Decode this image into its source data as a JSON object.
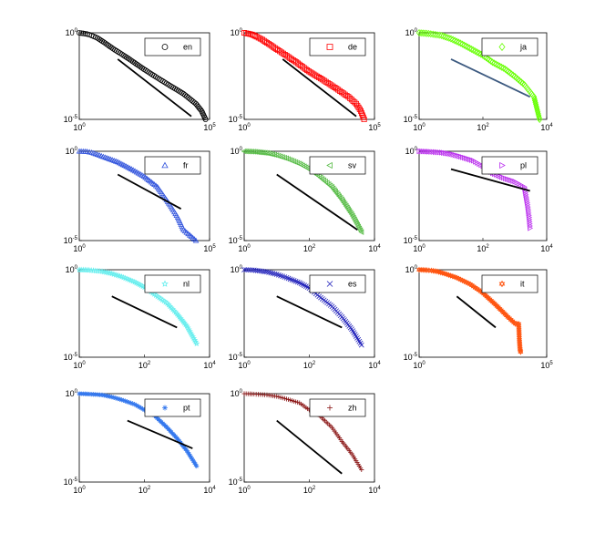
{
  "chart_data": [
    {
      "type": "scatter",
      "legend": "en",
      "marker": "circle",
      "color": "#000000",
      "xscale": "log",
      "yscale": "log",
      "xlim": [
        1,
        100000
      ],
      "ylim": [
        1e-05,
        1
      ],
      "xticks": [
        {
          "b": "10",
          "e": "0"
        },
        {
          "b": "10",
          "e": "5"
        }
      ],
      "yticks": [
        {
          "b": "10",
          "e": "0"
        },
        {
          "b": "10",
          "e": "-5"
        }
      ],
      "series": [
        {
          "x": [
            1,
            2,
            3,
            5,
            10,
            20,
            50,
            100,
            300,
            1000,
            3000,
            10000,
            30000,
            50000,
            70000
          ],
          "y": [
            1,
            0.85,
            0.7,
            0.5,
            0.25,
            0.12,
            0.05,
            0.025,
            0.008,
            0.0025,
            0.0009,
            0.0003,
            8e-05,
            3e-05,
            1e-05
          ]
        }
      ],
      "ref_line": {
        "x": [
          30,
          20000
        ],
        "y": [
          0.03,
          1.5e-05
        ],
        "color": "#000000"
      }
    },
    {
      "type": "scatter",
      "legend": "de",
      "marker": "square",
      "color": "#ff0000",
      "xscale": "log",
      "yscale": "log",
      "xlim": [
        1,
        100000
      ],
      "ylim": [
        1e-05,
        1
      ],
      "xticks": [
        {
          "b": "10",
          "e": "0"
        },
        {
          "b": "10",
          "e": "5"
        }
      ],
      "yticks": [
        {
          "b": "10",
          "e": "0"
        },
        {
          "b": "10",
          "e": "-5"
        }
      ],
      "series": [
        {
          "x": [
            1,
            2,
            3,
            5,
            10,
            20,
            50,
            100,
            300,
            1000,
            3000,
            10000,
            20000,
            30000,
            40000
          ],
          "y": [
            1,
            0.8,
            0.6,
            0.4,
            0.2,
            0.1,
            0.04,
            0.02,
            0.006,
            0.002,
            0.0007,
            0.0002,
            8e-05,
            3e-05,
            1e-05
          ]
        }
      ],
      "ref_line": {
        "x": [
          30,
          20000
        ],
        "y": [
          0.03,
          1.5e-05
        ],
        "color": "#000000"
      }
    },
    {
      "type": "scatter",
      "legend": "ja",
      "marker": "diamond",
      "color": "#66ff00",
      "xscale": "log",
      "yscale": "log",
      "xlim": [
        1,
        10000
      ],
      "ylim": [
        1e-05,
        1
      ],
      "xticks": [
        {
          "b": "10",
          "e": "0"
        },
        {
          "b": "10",
          "e": "2"
        },
        {
          "b": "10",
          "e": "4"
        }
      ],
      "yticks": [
        {
          "b": "10",
          "e": "0"
        },
        {
          "b": "10",
          "e": "-5"
        }
      ],
      "series": [
        {
          "x": [
            1,
            2,
            5,
            10,
            20,
            50,
            100,
            200,
            500,
            1000,
            2000,
            4000,
            6000
          ],
          "y": [
            1,
            0.9,
            0.7,
            0.45,
            0.25,
            0.1,
            0.05,
            0.02,
            0.008,
            0.003,
            0.001,
            0.0002,
            1e-05
          ]
        }
      ],
      "ref_line": {
        "x": [
          10,
          3000
        ],
        "y": [
          0.03,
          0.0002
        ],
        "color": "#3d5a80"
      }
    },
    {
      "type": "scatter",
      "legend": "fr",
      "marker": "triangle-up",
      "color": "#3355dd",
      "xscale": "log",
      "yscale": "log",
      "xlim": [
        1,
        100000
      ],
      "ylim": [
        1e-05,
        1
      ],
      "xticks": [
        {
          "b": "10",
          "e": "0"
        },
        {
          "b": "10",
          "e": "5"
        }
      ],
      "yticks": [
        {
          "b": "10",
          "e": "0"
        },
        {
          "b": "10",
          "e": "-5"
        }
      ],
      "series": [
        {
          "x": [
            1,
            2,
            3,
            5,
            10,
            30,
            100,
            300,
            1000,
            3000,
            6000,
            10000,
            30000
          ],
          "y": [
            1,
            0.95,
            0.85,
            0.65,
            0.45,
            0.25,
            0.1,
            0.04,
            0.01,
            0.001,
            0.0002,
            4e-05,
            1e-05
          ]
        }
      ],
      "ref_line": {
        "x": [
          30,
          8000
        ],
        "y": [
          0.05,
          0.0006
        ],
        "color": "#000000"
      }
    },
    {
      "type": "scatter",
      "legend": "sv",
      "marker": "triangle-left",
      "color": "#55bb44",
      "xscale": "log",
      "yscale": "log",
      "xlim": [
        1,
        10000
      ],
      "ylim": [
        1e-05,
        1
      ],
      "xticks": [
        {
          "b": "10",
          "e": "0"
        },
        {
          "b": "10",
          "e": "2"
        },
        {
          "b": "10",
          "e": "4"
        }
      ],
      "yticks": [
        {
          "b": "10",
          "e": "0"
        },
        {
          "b": "10",
          "e": "-5"
        }
      ],
      "series": [
        {
          "x": [
            1,
            2,
            5,
            10,
            20,
            50,
            100,
            200,
            500,
            1000,
            2000,
            4000
          ],
          "y": [
            1,
            0.95,
            0.8,
            0.6,
            0.4,
            0.2,
            0.1,
            0.04,
            0.01,
            0.002,
            0.0003,
            3e-05
          ]
        }
      ],
      "ref_line": {
        "x": [
          10,
          3000
        ],
        "y": [
          0.05,
          4e-05
        ],
        "color": "#000000"
      }
    },
    {
      "type": "scatter",
      "legend": "pl",
      "marker": "triangle-right",
      "color": "#bb33ee",
      "xscale": "log",
      "yscale": "log",
      "xlim": [
        1,
        10000
      ],
      "ylim": [
        1e-05,
        1
      ],
      "xticks": [
        {
          "b": "10",
          "e": "0"
        },
        {
          "b": "10",
          "e": "2"
        },
        {
          "b": "10",
          "e": "4"
        }
      ],
      "yticks": [
        {
          "b": "10",
          "e": "0"
        },
        {
          "b": "10",
          "e": "-5"
        }
      ],
      "series": [
        {
          "x": [
            1,
            2,
            5,
            10,
            20,
            50,
            100,
            200,
            500,
            1000,
            2000,
            2500,
            2800,
            3000
          ],
          "y": [
            1,
            0.95,
            0.85,
            0.7,
            0.5,
            0.3,
            0.15,
            0.06,
            0.03,
            0.02,
            0.01,
            0.001,
            0.0002,
            5e-05
          ]
        }
      ],
      "ref_line": {
        "x": [
          10,
          3000
        ],
        "y": [
          0.1,
          0.006
        ],
        "color": "#000000"
      }
    },
    {
      "type": "scatter",
      "legend": "nl",
      "marker": "star5",
      "color": "#66eeee",
      "xscale": "log",
      "yscale": "log",
      "xlim": [
        1,
        10000
      ],
      "ylim": [
        1e-05,
        1
      ],
      "xticks": [
        {
          "b": "10",
          "e": "0"
        },
        {
          "b": "10",
          "e": "2"
        },
        {
          "b": "10",
          "e": "4"
        }
      ],
      "yticks": [
        {
          "b": "10",
          "e": "0"
        },
        {
          "b": "10",
          "e": "-5"
        }
      ],
      "series": [
        {
          "x": [
            1,
            2,
            5,
            10,
            20,
            50,
            100,
            200,
            500,
            1000,
            2000,
            4000
          ],
          "y": [
            1,
            0.95,
            0.8,
            0.6,
            0.4,
            0.2,
            0.1,
            0.04,
            0.012,
            0.003,
            0.0006,
            6e-05
          ]
        }
      ],
      "ref_line": {
        "x": [
          10,
          1000
        ],
        "y": [
          0.03,
          0.0005
        ],
        "color": "#000000"
      }
    },
    {
      "type": "scatter",
      "legend": "es",
      "marker": "x",
      "color": "#2222bb",
      "xscale": "log",
      "yscale": "log",
      "xlim": [
        1,
        10000
      ],
      "ylim": [
        1e-05,
        1
      ],
      "xticks": [
        {
          "b": "10",
          "e": "0"
        },
        {
          "b": "10",
          "e": "2"
        },
        {
          "b": "10",
          "e": "4"
        }
      ],
      "yticks": [
        {
          "b": "10",
          "e": "0"
        },
        {
          "b": "10",
          "e": "-5"
        }
      ],
      "series": [
        {
          "x": [
            1,
            2,
            5,
            10,
            20,
            50,
            100,
            200,
            500,
            1000,
            2000,
            4000
          ],
          "y": [
            1,
            0.95,
            0.75,
            0.55,
            0.35,
            0.18,
            0.09,
            0.03,
            0.008,
            0.002,
            0.0004,
            5e-05
          ]
        }
      ],
      "ref_line": {
        "x": [
          10,
          1000
        ],
        "y": [
          0.03,
          0.0005
        ],
        "color": "#000000"
      }
    },
    {
      "type": "scatter",
      "legend": "it",
      "marker": "hexagram",
      "color": "#ff5511",
      "xscale": "log",
      "yscale": "log",
      "xlim": [
        1,
        100000
      ],
      "ylim": [
        1e-05,
        1
      ],
      "xticks": [
        {
          "b": "10",
          "e": "0"
        },
        {
          "b": "10",
          "e": "5"
        }
      ],
      "yticks": [
        {
          "b": "10",
          "e": "0"
        },
        {
          "b": "10",
          "e": "-5"
        }
      ],
      "series": [
        {
          "x": [
            1,
            2,
            3,
            5,
            10,
            30,
            100,
            300,
            1000,
            3000,
            6000,
            8000,
            8500,
            9000,
            9500
          ],
          "y": [
            1,
            0.95,
            0.9,
            0.8,
            0.6,
            0.35,
            0.15,
            0.05,
            0.01,
            0.002,
            0.0008,
            0.0008,
            0.0001,
            3e-05,
            2e-05
          ]
        }
      ],
      "ref_line": {
        "x": [
          30,
          1000
        ],
        "y": [
          0.03,
          0.0005
        ],
        "color": "#000000"
      }
    },
    {
      "type": "scatter",
      "legend": "pt",
      "marker": "asterisk",
      "color": "#3377ee",
      "xscale": "log",
      "yscale": "log",
      "xlim": [
        1,
        10000
      ],
      "ylim": [
        1e-05,
        1
      ],
      "xticks": [
        {
          "b": "10",
          "e": "0"
        },
        {
          "b": "10",
          "e": "2"
        },
        {
          "b": "10",
          "e": "4"
        }
      ],
      "yticks": [
        {
          "b": "10",
          "e": "0"
        },
        {
          "b": "10",
          "e": "-5"
        }
      ],
      "series": [
        {
          "x": [
            1,
            2,
            5,
            10,
            20,
            50,
            100,
            200,
            500,
            1000,
            2000,
            4000
          ],
          "y": [
            1,
            0.95,
            0.85,
            0.65,
            0.45,
            0.25,
            0.12,
            0.06,
            0.012,
            0.003,
            0.0006,
            8e-05
          ]
        }
      ],
      "ref_line": {
        "x": [
          30,
          3000
        ],
        "y": [
          0.03,
          0.0008
        ],
        "color": "#000000"
      }
    },
    {
      "type": "scatter",
      "legend": "zh",
      "marker": "plus",
      "color": "#881111",
      "xscale": "log",
      "yscale": "log",
      "xlim": [
        1,
        10000
      ],
      "ylim": [
        1e-05,
        1
      ],
      "xticks": [
        {
          "b": "10",
          "e": "0"
        },
        {
          "b": "10",
          "e": "2"
        },
        {
          "b": "10",
          "e": "4"
        }
      ],
      "yticks": [
        {
          "b": "10",
          "e": "0"
        },
        {
          "b": "10",
          "e": "-5"
        }
      ],
      "series": [
        {
          "x": [
            1,
            2,
            5,
            10,
            20,
            50,
            100,
            200,
            500,
            1000,
            2000,
            4000
          ],
          "y": [
            1,
            0.95,
            0.85,
            0.7,
            0.5,
            0.3,
            0.12,
            0.06,
            0.012,
            0.002,
            0.0004,
            5e-05
          ]
        }
      ],
      "ref_line": {
        "x": [
          10,
          1000
        ],
        "y": [
          0.03,
          3e-05
        ],
        "color": "#000000"
      }
    }
  ]
}
